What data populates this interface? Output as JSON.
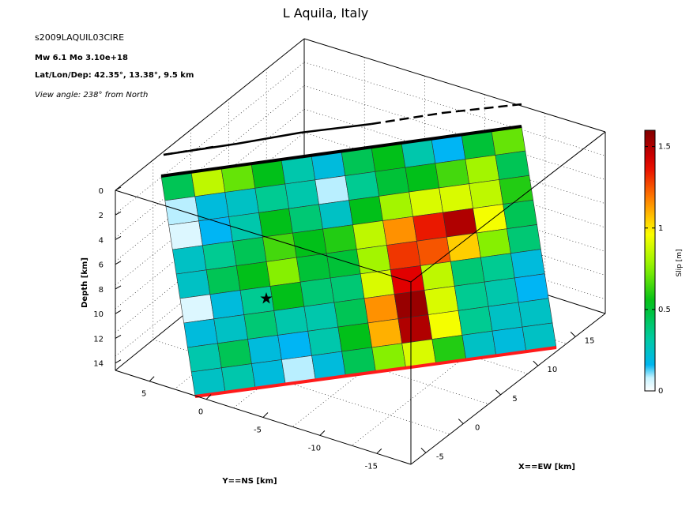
{
  "chart_data": {
    "type": "heatmap",
    "title": "L Aquila, Italy",
    "subtitle": "s2009LAQUIL03CIRE",
    "info_line1": "Mw 6.1    Mo 3.10e+18",
    "info_line2": "Lat/Lon/Dep: 42.35°, 13.38°, 9.5 km",
    "info_line3": "View angle: 238° from North",
    "zlabel": "Depth [km]",
    "xlabel": "X==EW [km]",
    "ylabel": "Y==NS [km]",
    "z_ticks": [
      0,
      2,
      4,
      6,
      8,
      10,
      12,
      14
    ],
    "x_ticks": [
      -5,
      0,
      5,
      10,
      15
    ],
    "y_ticks": [
      5,
      0,
      -5,
      -10,
      -15
    ],
    "colorbar": {
      "label": "Slip [m]",
      "range": [
        0,
        1.6
      ],
      "ticks": [
        0,
        0.5,
        1,
        1.5
      ],
      "colormap": "jet-with-white"
    },
    "grid": true,
    "hypocenter_marker": "star",
    "rows": 9,
    "cols": 12,
    "slip": [
      [
        0.45,
        0.85,
        0.7,
        0.55,
        0.3,
        0.2,
        0.45,
        0.55,
        0.3,
        0.15,
        0.5,
        0.7
      ],
      [
        0.1,
        0.2,
        0.25,
        0.35,
        0.3,
        0.1,
        0.35,
        0.5,
        0.55,
        0.65,
        0.8,
        0.45
      ],
      [
        0.05,
        0.15,
        0.3,
        0.55,
        0.4,
        0.25,
        0.55,
        0.8,
        0.9,
        0.9,
        0.85,
        0.6
      ],
      [
        0.25,
        0.35,
        0.45,
        0.65,
        0.55,
        0.6,
        0.85,
        1.15,
        1.35,
        1.5,
        0.95,
        0.45
      ],
      [
        0.25,
        0.45,
        0.55,
        0.75,
        0.5,
        0.5,
        0.8,
        1.3,
        1.25,
        1.05,
        0.75,
        0.4
      ],
      [
        0.05,
        0.2,
        0.35,
        0.55,
        0.4,
        0.4,
        0.9,
        1.4,
        0.85,
        0.4,
        0.35,
        0.2
      ],
      [
        0.2,
        0.25,
        0.4,
        0.3,
        0.3,
        0.45,
        1.15,
        1.55,
        0.9,
        0.35,
        0.3,
        0.15
      ],
      [
        0.3,
        0.45,
        0.2,
        0.15,
        0.3,
        0.55,
        1.1,
        1.5,
        0.95,
        0.35,
        0.25,
        0.25
      ],
      [
        0.25,
        0.3,
        0.2,
        0.1,
        0.2,
        0.45,
        0.75,
        0.9,
        0.6,
        0.25,
        0.2,
        0.25
      ]
    ]
  }
}
